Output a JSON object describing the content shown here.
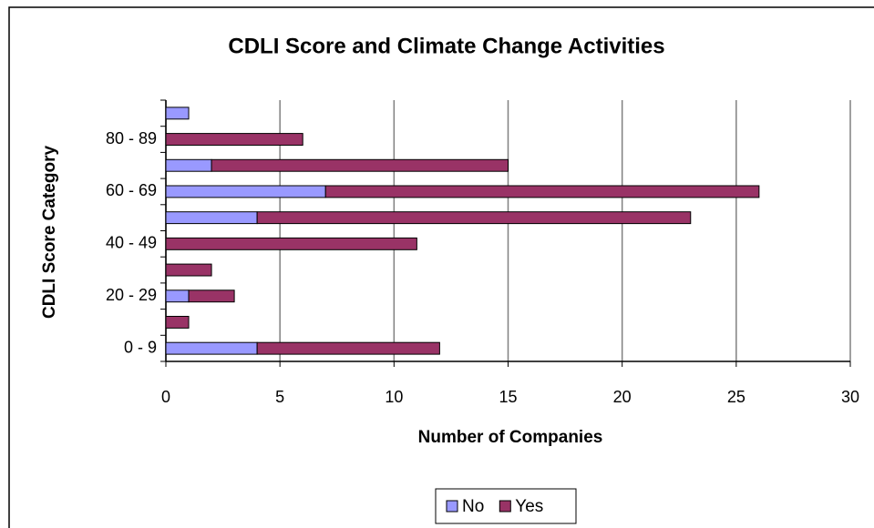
{
  "chart_data": {
    "type": "bar",
    "orientation": "horizontal",
    "stacked": true,
    "title": "CDLI Score and Climate Change Activities",
    "x_label": "Number of Companies",
    "y_label": "CDLI Score Category",
    "categories": [
      "0 - 9",
      null,
      "20 - 29",
      null,
      "40 - 49",
      null,
      "60 - 69",
      null,
      "80 - 89",
      null
    ],
    "series": [
      {
        "name": "No",
        "color": "#9999ff",
        "values": [
          4,
          0,
          1,
          0,
          0,
          4,
          7,
          2,
          0,
          1
        ]
      },
      {
        "name": "Yes",
        "color": "#993366",
        "values": [
          8,
          1,
          2,
          2,
          11,
          19,
          19,
          13,
          6,
          0
        ]
      }
    ],
    "xlim": [
      0,
      30
    ],
    "xticks": [
      0,
      5,
      10,
      15,
      20,
      25,
      30
    ],
    "grid": true,
    "legend": "bottom"
  }
}
